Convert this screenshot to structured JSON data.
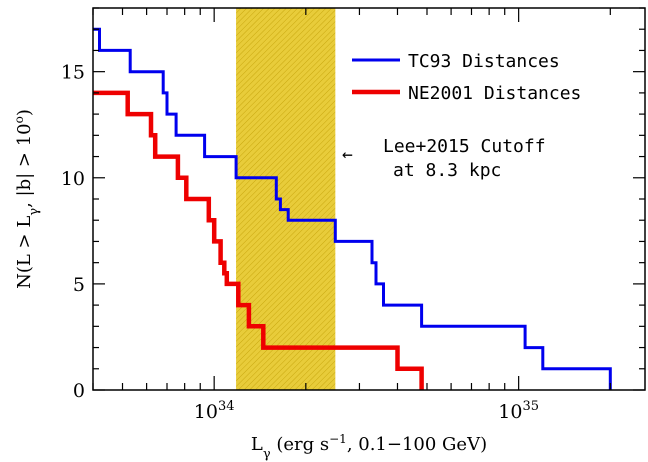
{
  "chart_data": {
    "type": "line",
    "step": true,
    "xscale": "log",
    "xlim": [
      4e+33,
      2.6e+35
    ],
    "ylim": [
      0,
      18
    ],
    "xlabel": "L",
    "xlabel_sub": "γ",
    "xlabel_units": " (erg s",
    "xlabel_units_sup": "−1",
    "xlabel_units_tail": ", 0.1−100 GeV)",
    "ylabel_pre": "N(L > L",
    "ylabel_sub": "γ",
    "ylabel_mid": ", |b| > 10",
    "ylabel_sup": "o",
    "ylabel_post": ")",
    "x_ticks": [
      {
        "base": "10",
        "exp": "34"
      },
      {
        "base": "10",
        "exp": "35"
      }
    ],
    "y_ticks": [
      "0",
      "5",
      "10",
      "15"
    ],
    "grid": false,
    "legend": "top-right",
    "shaded_band": {
      "x0": 1.18e+34,
      "x1": 2.5e+34,
      "color": "#e8cc3a"
    },
    "annotation": {
      "lines": [
        "Lee+2015 Cutoff",
        "at 8.3 kpc"
      ],
      "arrow": "←"
    },
    "series": [
      {
        "name": "TC93 Distances",
        "color": "#0000ee",
        "x": [
          4e+33,
          4.2e+33,
          5.3e+33,
          6.8e+33,
          7e+33,
          7.5e+33,
          9.3e+33,
          1.18e+34,
          1.6e+34,
          1.65e+34,
          1.75e+34,
          2.5e+34,
          3.3e+34,
          3.4e+34,
          3.6e+34,
          4.8e+34,
          1.05e+35,
          1.2e+35,
          2e+35
        ],
        "y": [
          17,
          16,
          15,
          14,
          13,
          12,
          11,
          10,
          9,
          8.5,
          8,
          7,
          6,
          5,
          4,
          3,
          2,
          1,
          0
        ]
      },
      {
        "name": "NE2001 Distances",
        "color": "#ee0000",
        "x": [
          4e+33,
          5.2e+33,
          6.2e+33,
          6.4e+33,
          7.6e+33,
          8.1e+33,
          9.6e+33,
          1e+34,
          1.05e+34,
          1.08e+34,
          1.1e+34,
          1.2e+34,
          1.3e+34,
          1.45e+34,
          4e+34,
          4.8e+34
        ],
        "y": [
          14,
          13,
          12,
          11,
          10,
          9,
          8,
          7,
          6,
          5.5,
          5,
          4,
          3,
          2,
          1,
          0
        ]
      }
    ]
  }
}
